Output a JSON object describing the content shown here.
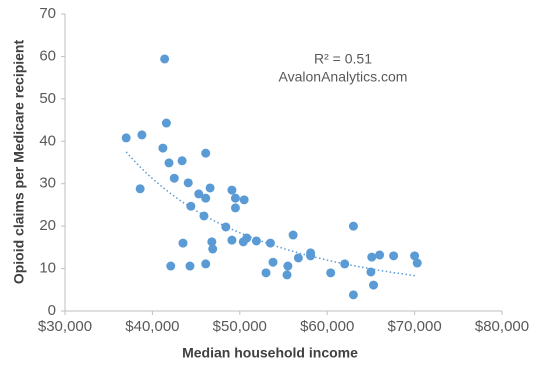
{
  "chart_data": {
    "type": "scatter",
    "x_label": "Median household income",
    "y_label": "Opioid claims per Medicare recipient",
    "annotations": [
      "R² = 0.51",
      "AvalonAnalytics.com"
    ],
    "trendline": "power",
    "color": "#5b9bd5",
    "xlim": [
      30000,
      80000
    ],
    "xticks": [
      {
        "value": 30000,
        "label": "$30,000"
      },
      {
        "value": 40000,
        "label": "$40,000"
      },
      {
        "value": 50000,
        "label": "$50,000"
      },
      {
        "value": 60000,
        "label": "$60,000"
      },
      {
        "value": 70000,
        "label": "$70,000"
      },
      {
        "value": 80000,
        "label": "$80,000"
      }
    ],
    "ylim": [
      0,
      70
    ],
    "yticks": [
      0,
      10,
      20,
      30,
      40,
      50,
      60,
      70
    ],
    "x": [
      37000,
      38800,
      38600,
      41400,
      41600,
      41200,
      41900,
      42500,
      43400,
      42100,
      43500,
      44100,
      44300,
      44400,
      45300,
      46100,
      46100,
      46600,
      45900,
      46800,
      46900,
      46100,
      48400,
      49100,
      49500,
      49500,
      50500,
      49100,
      50400,
      50800,
      51900,
      53500,
      53800,
      53000,
      55500,
      55400,
      56100,
      56700,
      58100,
      58100,
      60400,
      62000,
      63000,
      63000,
      65100,
      65000,
      65300,
      66000,
      67600,
      70000,
      70300
    ],
    "y": [
      40.8,
      41.5,
      28.8,
      59.4,
      44.3,
      38.4,
      34.9,
      31.3,
      35.4,
      10.6,
      16.0,
      30.2,
      10.6,
      24.7,
      27.6,
      37.2,
      26.6,
      29.0,
      22.4,
      16.3,
      14.6,
      11.1,
      19.8,
      28.5,
      26.6,
      24.3,
      26.2,
      16.7,
      16.3,
      17.2,
      16.5,
      16.0,
      11.5,
      9.0,
      10.6,
      8.5,
      17.9,
      12.5,
      13.7,
      13.0,
      9.0,
      11.1,
      20.0,
      3.8,
      12.7,
      9.2,
      6.1,
      13.2,
      13.0,
      13.0,
      11.3
    ]
  }
}
